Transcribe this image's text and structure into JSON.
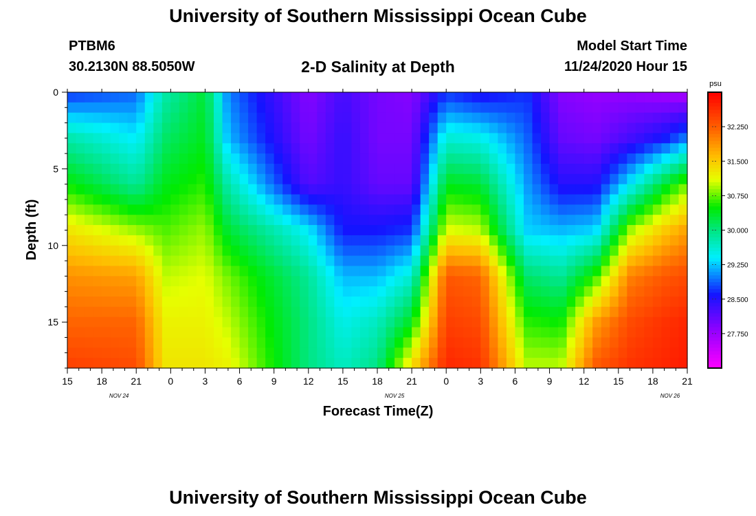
{
  "header": {
    "title": "University of Southern Mississippi Ocean Cube",
    "station": "PTBM6",
    "coords": "30.2130N 88.5050W",
    "subtitle": "2-D Salinity at Depth",
    "start_label": "Model Start Time",
    "start_value": "11/24/2020 Hour 15"
  },
  "footer": {
    "title": "University of Southern Mississippi Ocean Cube"
  },
  "chart_data": {
    "type": "heatmap",
    "title": "2-D Salinity at Depth",
    "xlabel": "Forecast Time(Z)",
    "ylabel": "Depth (ft)",
    "x_ticks": [
      "15",
      "18",
      "21",
      "0",
      "3",
      "6",
      "9",
      "12",
      "15",
      "18",
      "21",
      "0",
      "3",
      "6",
      "9",
      "12",
      "15",
      "18",
      "21"
    ],
    "date_labels": [
      {
        "label": "NOV 24",
        "hour_offset": 4.5
      },
      {
        "label": "NOV 25",
        "hour_offset": 28.5
      },
      {
        "label": "NOV 26",
        "hour_offset": 52.5
      }
    ],
    "xlim_hours": [
      0,
      54
    ],
    "y_ticks": [
      0,
      5,
      10,
      15
    ],
    "ylim_ft": [
      0,
      18
    ],
    "colorbar": {
      "unit": "psu",
      "ticks": [
        "32.250",
        "31.500",
        "30.750",
        "30.000",
        "29.250",
        "28.500",
        "27.750"
      ],
      "tick_values": [
        32.25,
        31.5,
        30.75,
        30.0,
        29.25,
        28.5,
        27.75
      ],
      "range": [
        27.0,
        33.0
      ]
    },
    "depths_ft": [
      0,
      3,
      6,
      9,
      12,
      15,
      18
    ],
    "profile_hours": [
      0,
      6,
      8.5,
      12,
      14,
      21,
      24,
      27,
      30,
      33,
      36,
      40,
      43,
      46,
      49,
      52,
      54
    ],
    "salinity_psu": [
      [
        28.7,
        29.8,
        30.5,
        31.3,
        31.9,
        32.2,
        32.5
      ],
      [
        28.9,
        29.4,
        29.9,
        30.9,
        31.8,
        32.2,
        32.4
      ],
      [
        29.8,
        30.1,
        30.4,
        30.7,
        31.0,
        31.2,
        31.3
      ],
      [
        30.3,
        30.4,
        30.6,
        30.9,
        31.1,
        31.2,
        31.3
      ],
      [
        29.0,
        29.2,
        29.8,
        30.3,
        30.8,
        31.0,
        31.2
      ],
      [
        27.9,
        28.0,
        28.2,
        29.4,
        29.9,
        30.0,
        30.0
      ],
      [
        28.3,
        28.4,
        28.4,
        28.6,
        29.2,
        29.5,
        29.7
      ],
      [
        28.0,
        28.0,
        28.1,
        28.6,
        29.2,
        29.7,
        30.0
      ],
      [
        27.9,
        28.0,
        28.1,
        28.7,
        29.6,
        30.4,
        31.4
      ],
      [
        28.7,
        29.6,
        30.4,
        31.1,
        32.3,
        32.5,
        32.7
      ],
      [
        28.5,
        29.5,
        30.3,
        31.0,
        32.2,
        32.4,
        32.6
      ],
      [
        28.7,
        28.9,
        29.1,
        29.3,
        30.1,
        30.6,
        31.0
      ],
      [
        27.9,
        28.1,
        28.5,
        29.2,
        29.9,
        30.5,
        31.0
      ],
      [
        27.8,
        28.0,
        28.5,
        29.3,
        30.6,
        31.8,
        32.3
      ],
      [
        27.8,
        28.3,
        29.4,
        30.9,
        32.0,
        32.4,
        32.6
      ],
      [
        27.7,
        28.6,
        30.3,
        31.5,
        32.3,
        32.6,
        32.7
      ],
      [
        27.6,
        29.0,
        30.8,
        31.8,
        32.4,
        32.7,
        32.8
      ]
    ]
  }
}
